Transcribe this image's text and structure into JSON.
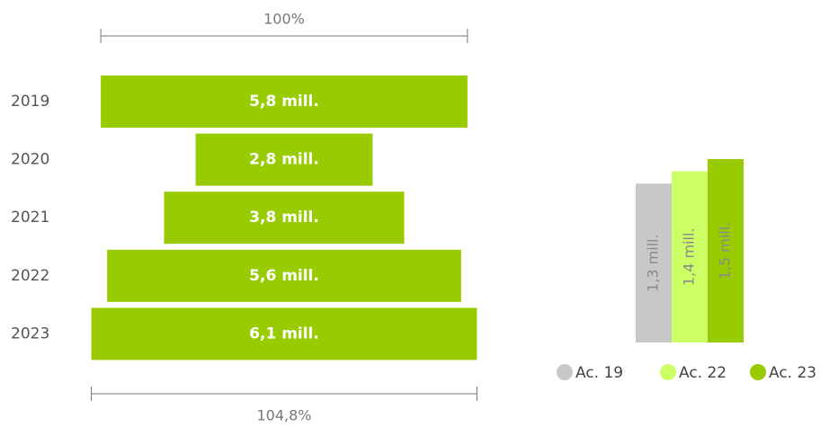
{
  "chart_data": [
    {
      "type": "funnel",
      "categories": [
        "2019",
        "2020",
        "2021",
        "2022",
        "2023"
      ],
      "values": [
        5.8,
        2.8,
        3.8,
        5.6,
        6.1
      ],
      "value_labels": [
        "5,8 mill.",
        "2,8 mill.",
        "3,8 mill.",
        "5,6 mill.",
        "6,1 mill."
      ],
      "color": "#99cc00",
      "annotations": [
        "100%",
        "104,8%"
      ]
    },
    {
      "type": "bar",
      "series": [
        {
          "name": "Ac. 19",
          "color": "#c8c8c8",
          "values": [
            1.3
          ],
          "value_labels": [
            "1,3 mill."
          ]
        },
        {
          "name": "Ac. 22",
          "color": "#ccff66",
          "values": [
            1.4
          ],
          "value_labels": [
            "1,4 mill."
          ]
        },
        {
          "name": "Ac. 23",
          "color": "#99cc00",
          "values": [
            1.5
          ],
          "value_labels": [
            "1,5 mill."
          ]
        }
      ]
    }
  ]
}
